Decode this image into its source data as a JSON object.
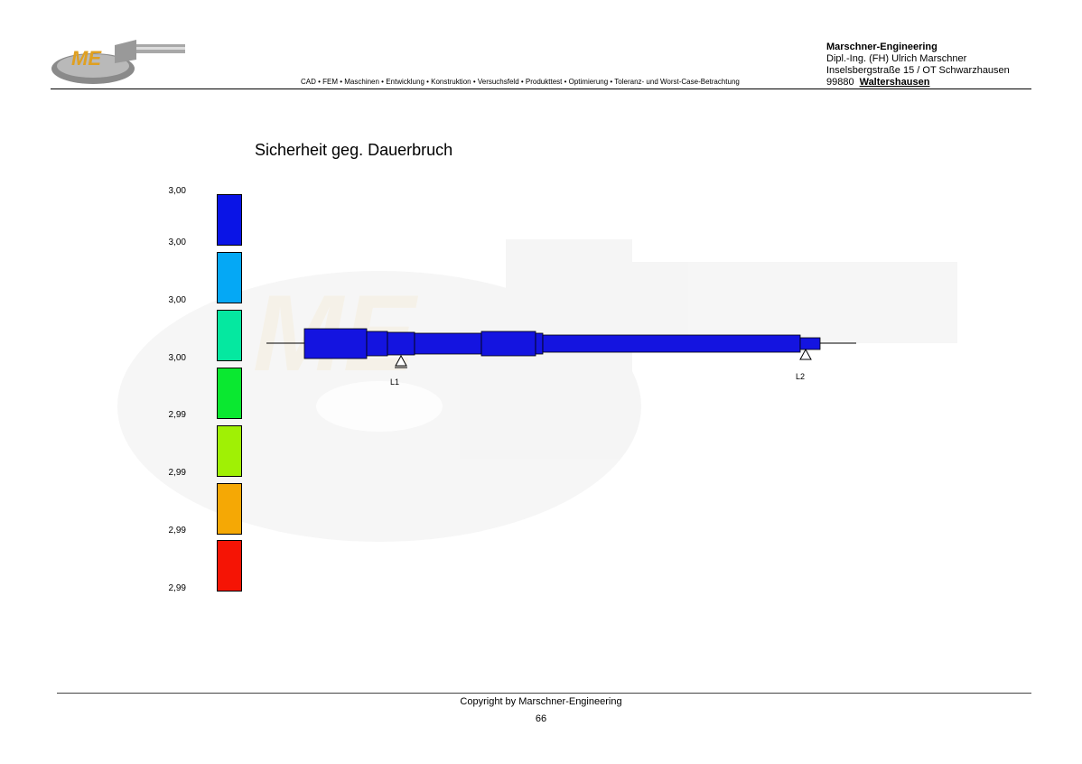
{
  "header": {
    "logo_text": "ME",
    "tagline": "CAD • FEM • Maschinen • Entwicklung • Konstruktion • Versuchsfeld • Produkttest  • Optimierung • Toleranz- und Worst-Case-Betrachtung",
    "company": {
      "name": "Marschner-Engineering",
      "person": "Dipl.-Ing. (FH) Ulrich Marschner",
      "street": "Inselsbergstraße 15 / OT Schwarzhausen",
      "zip": "99880",
      "city": "Waltershausen"
    }
  },
  "diagram": {
    "title": "Sicherheit geg. Dauerbruch",
    "legend": [
      {
        "label": "3,00",
        "color": "#0a14e6"
      },
      {
        "label": "3,00",
        "color": "#05a8f5"
      },
      {
        "label": "3,00",
        "color": "#05e8a0"
      },
      {
        "label": "3,00",
        "color": "#0ae830"
      },
      {
        "label": "2,99",
        "color": "#a0f005"
      },
      {
        "label": "2,99",
        "color": "#f5a805"
      },
      {
        "label": "2,99",
        "color": "#f51405"
      },
      {
        "label": "2,99",
        "color": ""
      }
    ],
    "bearings": [
      {
        "label": "L1"
      },
      {
        "label": "L2"
      }
    ],
    "shaft_color": "#1414e0"
  },
  "footer": {
    "copyright": "Copyright by Marschner-Engineering",
    "page": "66"
  }
}
